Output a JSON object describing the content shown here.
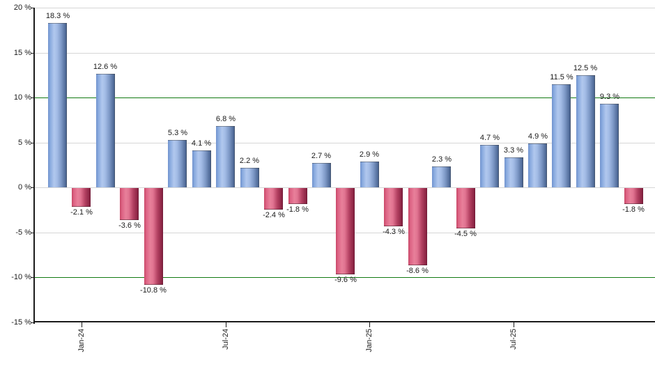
{
  "chart_data": {
    "type": "bar",
    "title": "",
    "unit": "%",
    "values": [
      18.3,
      -2.1,
      12.6,
      -3.6,
      -10.8,
      5.3,
      4.1,
      6.8,
      2.2,
      -2.4,
      -1.8,
      2.7,
      -9.6,
      2.9,
      -4.3,
      -8.6,
      2.3,
      -4.5,
      4.7,
      3.3,
      4.9,
      11.5,
      12.5,
      9.3,
      -1.8
    ],
    "bar_labels": [
      "18.3 %",
      "-2.1 %",
      "12.6 %",
      "-3.6 %",
      "-10.8 %",
      "5.3 %",
      "4.1 %",
      "6.8 %",
      "2.2 %",
      "-2.4 %",
      "-1.8 %",
      "2.7 %",
      "-9.6 %",
      "2.9 %",
      "-4.3 %",
      "-8.6 %",
      "2.3 %",
      "-4.5 %",
      "4.7 %",
      "3.3 %",
      "4.9 %",
      "11.5 %",
      "12.5 %",
      "9.3 %",
      "-1.8 %"
    ],
    "x_ticks": [
      {
        "label": "Jan-24",
        "bar_index": 1
      },
      {
        "label": "Jul-24",
        "bar_index": 7
      },
      {
        "label": "Jan-25",
        "bar_index": 13
      },
      {
        "label": "Jul-25",
        "bar_index": 19
      }
    ],
    "y_ticks": [
      {
        "label": "20 %",
        "value": 20
      },
      {
        "label": "15 %",
        "value": 15
      },
      {
        "label": "10 %",
        "value": 10
      },
      {
        "label": "5 %",
        "value": 5
      },
      {
        "label": "0 %",
        "value": 0
      },
      {
        "label": "-5 %",
        "value": -5
      },
      {
        "label": "-10 %",
        "value": -10
      },
      {
        "label": "-15 %",
        "value": -15
      }
    ],
    "ylim": [
      -15,
      20
    ],
    "grid": true,
    "legend": "none",
    "reference_lines": [
      {
        "value": 10,
        "color": "#117a11"
      },
      {
        "value": -10,
        "color": "#117a11"
      }
    ],
    "colors": {
      "positive_bar": "#88a9dd",
      "negative_bar": "#d05878",
      "gridline": "#d6d6d6",
      "reference_line": "#117a11",
      "axis": "#1a1a1a",
      "label_text": "#1a1a1a"
    }
  }
}
